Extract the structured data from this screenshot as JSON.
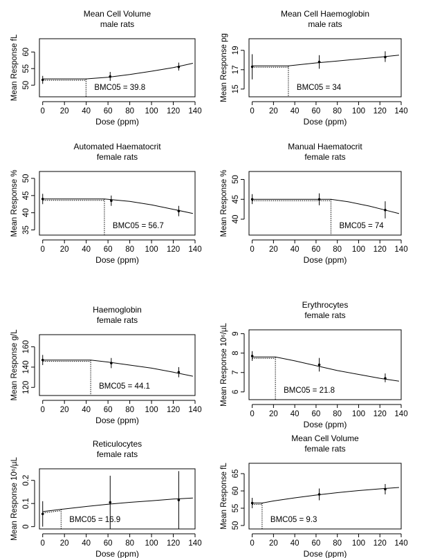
{
  "chart_data": [
    {
      "type": "line",
      "title": "Mean Cell Volume",
      "subtitle": "male rats",
      "xlabel": "Dose (ppm)",
      "ylabel": "Mean Response fL",
      "xticks": [
        0,
        20,
        40,
        60,
        80,
        100,
        120,
        140
      ],
      "yticks": [
        50,
        55,
        60
      ],
      "xlim": [
        -3,
        140
      ],
      "ylim": [
        46.5,
        64
      ],
      "points": [
        {
          "x": 0,
          "y": 51.6,
          "lo": 50.4,
          "hi": 52.8
        },
        {
          "x": 62,
          "y": 52.6,
          "lo": 51.3,
          "hi": 54.0
        },
        {
          "x": 125,
          "y": 55.5,
          "lo": 54.4,
          "hi": 56.8
        }
      ],
      "curve": [
        [
          0,
          51.9
        ],
        [
          39.8,
          51.9
        ],
        [
          60,
          52.4
        ],
        [
          80,
          53.2
        ],
        [
          100,
          54.2
        ],
        [
          120,
          55.3
        ],
        [
          138,
          56.6
        ]
      ],
      "bmc_value": 39.8,
      "bmc_text": "BMC05 = 39.8"
    },
    {
      "type": "line",
      "title": "Mean Cell Haemoglobin",
      "subtitle": "male rats",
      "xlabel": "Dose (ppm)",
      "ylabel": "Mean Response pg",
      "xticks": [
        0,
        20,
        40,
        60,
        80,
        100,
        120,
        140
      ],
      "yticks": [
        15,
        17,
        19
      ],
      "xlim": [
        -3,
        140
      ],
      "ylim": [
        14.2,
        20.2
      ],
      "points": [
        {
          "x": 0,
          "y": 17.3,
          "lo": 16.0,
          "hi": 18.6
        },
        {
          "x": 63,
          "y": 17.8,
          "lo": 17.1,
          "hi": 18.5
        },
        {
          "x": 125,
          "y": 18.3,
          "lo": 17.8,
          "hi": 18.9
        }
      ],
      "curve": [
        [
          0,
          17.4
        ],
        [
          34,
          17.4
        ],
        [
          60,
          17.7
        ],
        [
          80,
          17.9
        ],
        [
          100,
          18.1
        ],
        [
          120,
          18.3
        ],
        [
          138,
          18.5
        ]
      ],
      "bmc_value": 34,
      "bmc_text": "BMC05 = 34"
    },
    {
      "type": "line",
      "title": "Automated Haematocrit",
      "subtitle": "female rats",
      "xlabel": "Dose (ppm)",
      "ylabel": "Mean Response %",
      "xticks": [
        0,
        20,
        40,
        60,
        80,
        100,
        120,
        140
      ],
      "yticks": [
        35,
        40,
        45,
        50
      ],
      "xlim": [
        -3,
        140
      ],
      "ylim": [
        33.5,
        52
      ],
      "points": [
        {
          "x": 0,
          "y": 44.0,
          "lo": 42.5,
          "hi": 45.5
        },
        {
          "x": 63,
          "y": 43.5,
          "lo": 42.0,
          "hi": 45.0
        },
        {
          "x": 125,
          "y": 40.5,
          "lo": 39.0,
          "hi": 42.0
        }
      ],
      "curve": [
        [
          0,
          44.0
        ],
        [
          56.7,
          44.0
        ],
        [
          80,
          43.3
        ],
        [
          100,
          42.3
        ],
        [
          120,
          41.0
        ],
        [
          138,
          39.8
        ]
      ],
      "bmc_value": 56.7,
      "bmc_text": "BMC05 = 56.7"
    },
    {
      "type": "line",
      "title": "Manual Haematocrit",
      "subtitle": "female rats",
      "xlabel": "Dose (ppm)",
      "ylabel": "Mean Response %",
      "xticks": [
        0,
        20,
        40,
        60,
        80,
        100,
        120,
        140
      ],
      "yticks": [
        40,
        45,
        50
      ],
      "xlim": [
        -3,
        140
      ],
      "ylim": [
        36,
        52
      ],
      "points": [
        {
          "x": 0,
          "y": 45.0,
          "lo": 43.8,
          "hi": 46.3
        },
        {
          "x": 63,
          "y": 45.0,
          "lo": 43.5,
          "hi": 46.5
        },
        {
          "x": 125,
          "y": 42.3,
          "lo": 40.2,
          "hi": 44.5
        }
      ],
      "curve": [
        [
          0,
          45.0
        ],
        [
          74,
          45.0
        ],
        [
          90,
          44.4
        ],
        [
          110,
          43.3
        ],
        [
          125,
          42.3
        ],
        [
          138,
          41.4
        ]
      ],
      "bmc_value": 74,
      "bmc_text": "BMC05 = 74"
    },
    {
      "type": "line",
      "title": "Haemoglobin",
      "subtitle": "female rats",
      "xlabel": "Dose (ppm)",
      "ylabel": "Mean Response g/L",
      "xticks": [
        0,
        20,
        40,
        60,
        80,
        100,
        120,
        140
      ],
      "yticks": [
        120,
        140,
        160
      ],
      "xlim": [
        -3,
        140
      ],
      "ylim": [
        112,
        172
      ],
      "points": [
        {
          "x": 0,
          "y": 147,
          "lo": 142,
          "hi": 152
        },
        {
          "x": 63,
          "y": 144,
          "lo": 139,
          "hi": 149
        },
        {
          "x": 125,
          "y": 135,
          "lo": 130,
          "hi": 140
        }
      ],
      "curve": [
        [
          0,
          147
        ],
        [
          44.1,
          147
        ],
        [
          60,
          145
        ],
        [
          80,
          142
        ],
        [
          100,
          139
        ],
        [
          120,
          135
        ],
        [
          138,
          131
        ]
      ],
      "bmc_value": 44.1,
      "bmc_text": "BMC05 = 44.1"
    },
    {
      "type": "line",
      "title": "Erythrocytes",
      "subtitle": "female rats",
      "xlabel": "Dose (ppm)",
      "ylabel": "Mean Response 10⁶/µL",
      "xticks": [
        0,
        20,
        40,
        60,
        80,
        100,
        120,
        140
      ],
      "yticks": [
        6,
        7,
        8,
        9
      ],
      "xlim": [
        -3,
        140
      ],
      "ylim": [
        5.6,
        9.2
      ],
      "points": [
        {
          "x": 0,
          "y": 7.85,
          "lo": 7.6,
          "hi": 8.1
        },
        {
          "x": 63,
          "y": 7.4,
          "lo": 7.05,
          "hi": 7.75
        },
        {
          "x": 125,
          "y": 6.7,
          "lo": 6.5,
          "hi": 6.95
        }
      ],
      "curve": [
        [
          0,
          7.8
        ],
        [
          21.8,
          7.8
        ],
        [
          40,
          7.6
        ],
        [
          60,
          7.35
        ],
        [
          80,
          7.1
        ],
        [
          100,
          6.9
        ],
        [
          120,
          6.7
        ],
        [
          138,
          6.55
        ]
      ],
      "bmc_value": 21.8,
      "bmc_text": "BMC05 = 21.8"
    },
    {
      "type": "line",
      "title": "Reticulocytes",
      "subtitle": "female rats",
      "xlabel": "Dose (ppm)",
      "ylabel": "Mean Response 10⁶/µL",
      "xticks": [
        0,
        20,
        40,
        60,
        80,
        100,
        120,
        140
      ],
      "yticks": [
        0,
        0.1,
        0.2
      ],
      "ytick_labels": [
        "0",
        "0.1",
        "0.2"
      ],
      "xlim": [
        -3,
        140
      ],
      "ylim": [
        -0.01,
        0.25
      ],
      "points": [
        {
          "x": 0,
          "y": 0.055,
          "lo": 0.0,
          "hi": 0.11
        },
        {
          "x": 62,
          "y": 0.105,
          "lo": -0.01,
          "hi": 0.22
        },
        {
          "x": 125,
          "y": 0.115,
          "lo": -0.01,
          "hi": 0.24
        }
      ],
      "curve": [
        [
          0,
          0.065
        ],
        [
          16.9,
          0.075
        ],
        [
          40,
          0.087
        ],
        [
          60,
          0.097
        ],
        [
          80,
          0.105
        ],
        [
          100,
          0.112
        ],
        [
          120,
          0.119
        ],
        [
          138,
          0.124
        ]
      ],
      "bmc_value": 16.9,
      "bmc_text": "BMC05 = 16.9"
    },
    {
      "type": "line",
      "title": "Mean Cell Volume",
      "subtitle": "female rats",
      "xlabel": "Dose (ppm)",
      "ylabel": "Mean Response fL",
      "xticks": [
        0,
        20,
        40,
        60,
        80,
        100,
        120,
        140
      ],
      "yticks": [
        50,
        55,
        60,
        65
      ],
      "xlim": [
        -3,
        140
      ],
      "ylim": [
        49,
        68
      ],
      "points": [
        {
          "x": 0,
          "y": 56.5,
          "lo": 55.0,
          "hi": 58.0
        },
        {
          "x": 63,
          "y": 59.0,
          "lo": 57.3,
          "hi": 60.7
        },
        {
          "x": 125,
          "y": 60.5,
          "lo": 59.0,
          "hi": 62.0
        }
      ],
      "curve": [
        [
          0,
          56.5
        ],
        [
          9.3,
          56.5
        ],
        [
          20,
          57.1
        ],
        [
          40,
          58.0
        ],
        [
          60,
          58.8
        ],
        [
          80,
          59.5
        ],
        [
          100,
          60.1
        ],
        [
          120,
          60.6
        ],
        [
          138,
          61.0
        ]
      ],
      "bmc_value": 9.3,
      "bmc_text": "BMC05 = 9.3"
    }
  ]
}
